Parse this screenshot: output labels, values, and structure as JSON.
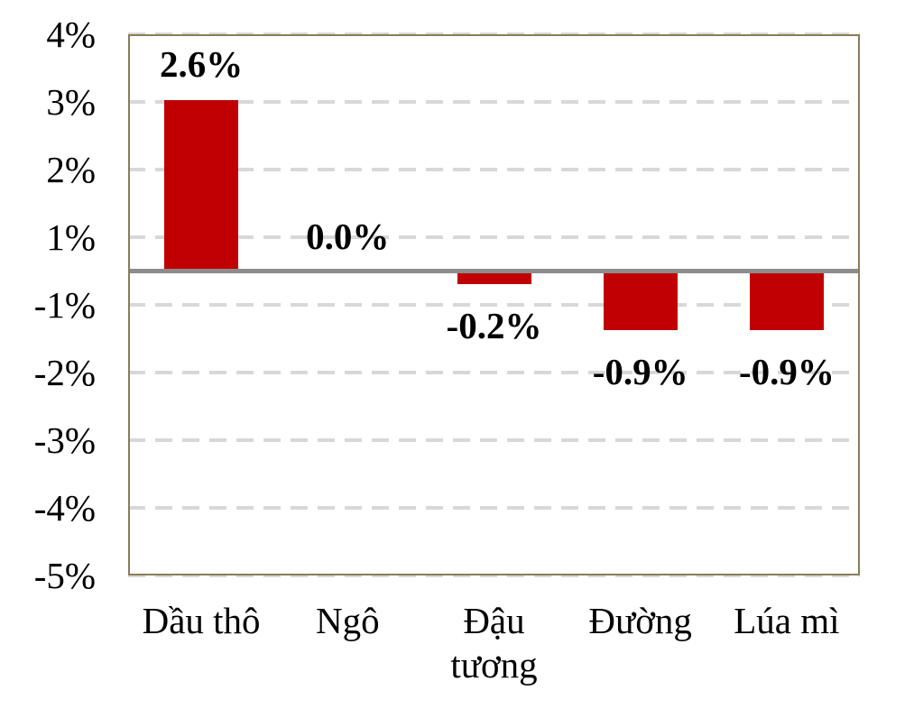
{
  "chart_data": {
    "type": "bar",
    "title": "",
    "xlabel": "",
    "ylabel": "",
    "categories": [
      "Dầu thô",
      "Ngô",
      "Đậu tương",
      "Đường",
      "Lúa mì"
    ],
    "values": [
      2.6,
      0.0,
      -0.2,
      -0.9,
      -0.9
    ],
    "data_labels": [
      "2.6%",
      "0.0%",
      "-0.2%",
      "-0.9%",
      "-0.9%"
    ],
    "y_tick_labels": [
      "4%",
      "3%",
      "2%",
      "1%",
      "-1%",
      "-2%",
      "-3%",
      "-4%",
      "-5%"
    ],
    "axis_note": "y axis ticks are equally spaced and skip a 0% label; a solid gray zero baseline sits midway between the 1% and -1% gridlines",
    "ylim_labels": [
      4,
      -5
    ],
    "grid": "horizontal dashed gridlines on",
    "legend": "none",
    "series_name": "",
    "colors": {
      "bar": "#C00000",
      "plot_border": "#897D55",
      "gridline": "#D8D8D8",
      "zero_line": "#8C8C8C",
      "text": "#000000",
      "background": "#FFFFFF"
    }
  }
}
